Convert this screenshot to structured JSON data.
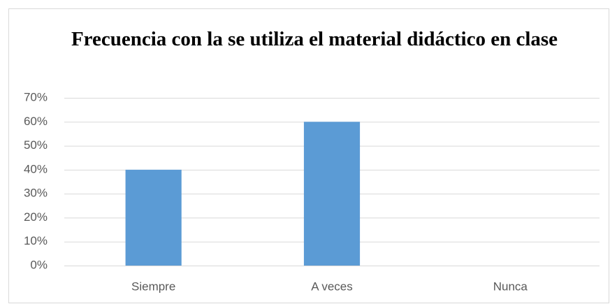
{
  "chart_data": {
    "type": "bar",
    "title": "Frecuencia con la se utiliza el material didáctico en clase",
    "categories": [
      "Siempre",
      "A veces",
      "Nunca"
    ],
    "values": [
      40,
      60,
      0
    ],
    "color": "#5b9bd5",
    "ylim": [
      0,
      70
    ],
    "yticks": [
      {
        "value": 0,
        "label": "0%"
      },
      {
        "value": 10,
        "label": "10%"
      },
      {
        "value": 20,
        "label": "20%"
      },
      {
        "value": 30,
        "label": "30%"
      },
      {
        "value": 40,
        "label": "40%"
      },
      {
        "value": 50,
        "label": "50%"
      },
      {
        "value": 60,
        "label": "60%"
      },
      {
        "value": 70,
        "label": "70%"
      }
    ],
    "grid": true
  }
}
